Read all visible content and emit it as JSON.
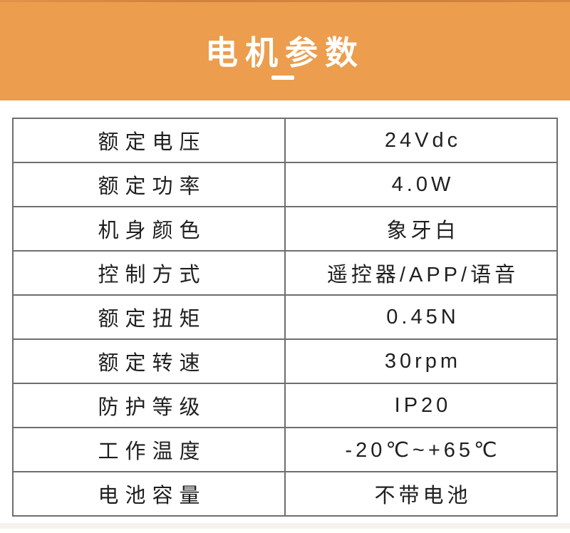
{
  "header": {
    "title": "电机参数",
    "background_color": "#EC9D4E",
    "title_color": "#ffffff"
  },
  "spec_table": {
    "outer_border_color": "#3d3d3d",
    "inner_border_color": "#6e6e6e",
    "text_color": "#1f1f1f",
    "rows": [
      {
        "label": "额定电压",
        "value": "24Vdc"
      },
      {
        "label": "额定功率",
        "value": "4.0W"
      },
      {
        "label": "机身颜色",
        "value": "象牙白"
      },
      {
        "label": "控制方式",
        "value": "遥控器/APP/语音"
      },
      {
        "label": "额定扭矩",
        "value": "0.45N"
      },
      {
        "label": "额定转速",
        "value": "30rpm"
      },
      {
        "label": "防护等级",
        "value": "IP20"
      },
      {
        "label": "工作温度",
        "value": "-20℃~+65℃"
      },
      {
        "label": "电池容量",
        "value": "不带电池"
      }
    ]
  }
}
